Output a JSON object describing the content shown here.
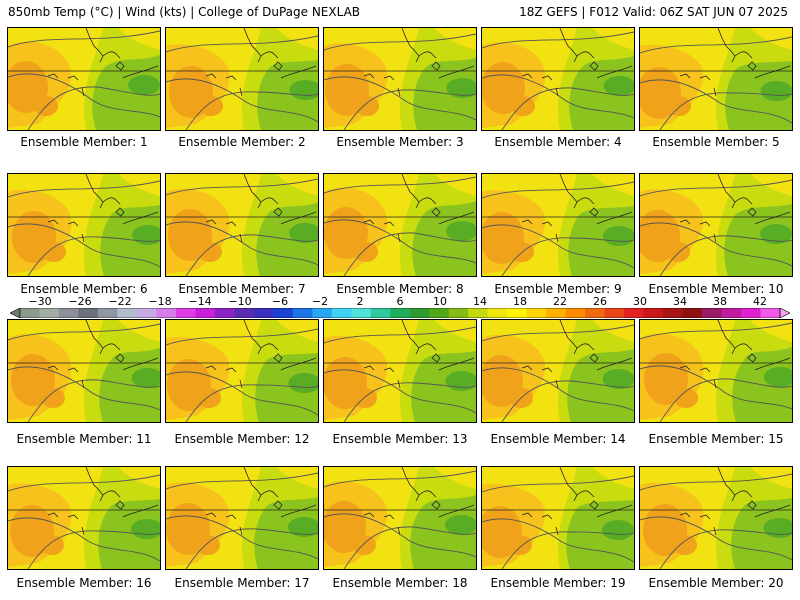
{
  "header": {
    "left": "850mb Temp (°C) | Wind (kts) | College of DuPage NEXLAB",
    "right": "18Z GEFS | F012 Valid: 06Z SAT JUN 07 2025"
  },
  "panels": [
    {
      "label": "Ensemble Member: 1"
    },
    {
      "label": "Ensemble Member: 2"
    },
    {
      "label": "Ensemble Member: 3"
    },
    {
      "label": "Ensemble Member: 4"
    },
    {
      "label": "Ensemble Member: 5"
    },
    {
      "label": "Ensemble Member: 6"
    },
    {
      "label": "Ensemble Member: 7"
    },
    {
      "label": "Ensemble Member: 8"
    },
    {
      "label": "Ensemble Member: 9"
    },
    {
      "label": "Ensemble Member: 10"
    },
    {
      "label": "Ensemble Member: 11"
    },
    {
      "label": "Ensemble Member: 12"
    },
    {
      "label": "Ensemble Member: 13"
    },
    {
      "label": "Ensemble Member: 14"
    },
    {
      "label": "Ensemble Member: 15"
    },
    {
      "label": "Ensemble Member: 16"
    },
    {
      "label": "Ensemble Member: 17"
    },
    {
      "label": "Ensemble Member: 18"
    },
    {
      "label": "Ensemble Member: 19"
    },
    {
      "label": "Ensemble Member: 20"
    }
  ],
  "colorbar": {
    "min": -32,
    "max": 44,
    "ticks": [
      "-30",
      "-26",
      "-22",
      "-18",
      "-14",
      "-10",
      "-6",
      "-2",
      "2",
      "6",
      "10",
      "14",
      "18",
      "22",
      "26",
      "30",
      "34",
      "38",
      "42"
    ],
    "colors": [
      "#6f7f71",
      "#8a9a8c",
      "#a2aca4",
      "#8c8f9a",
      "#6c717d",
      "#8f96a3",
      "#b3bccb",
      "#c7a8e3",
      "#d57de8",
      "#e03ce6",
      "#c81fdc",
      "#8e23c6",
      "#5b2bb0",
      "#3b2fc0",
      "#1a43d6",
      "#1d74e6",
      "#28a6f0",
      "#3fd2f2",
      "#4de3da",
      "#2fc99f",
      "#1fae5c",
      "#2f9a2f",
      "#52a81d",
      "#86bb14",
      "#c4d80e",
      "#f0e80c",
      "#fff400",
      "#ffd400",
      "#ffb000",
      "#ff8c00",
      "#f06b10",
      "#e94518",
      "#e42020",
      "#c81818",
      "#a81414",
      "#8f1010",
      "#9b1a66",
      "#c11a9e",
      "#e020cc",
      "#ee5ae6",
      "#f6a0f2"
    ],
    "interval": 2
  },
  "palette": {
    "orange": "#f0a21a",
    "lightorange": "#f7c21c",
    "yellow": "#f2e211",
    "ygreen": "#c9dc10",
    "green": "#8bc41e",
    "dgreen": "#58ad24"
  }
}
